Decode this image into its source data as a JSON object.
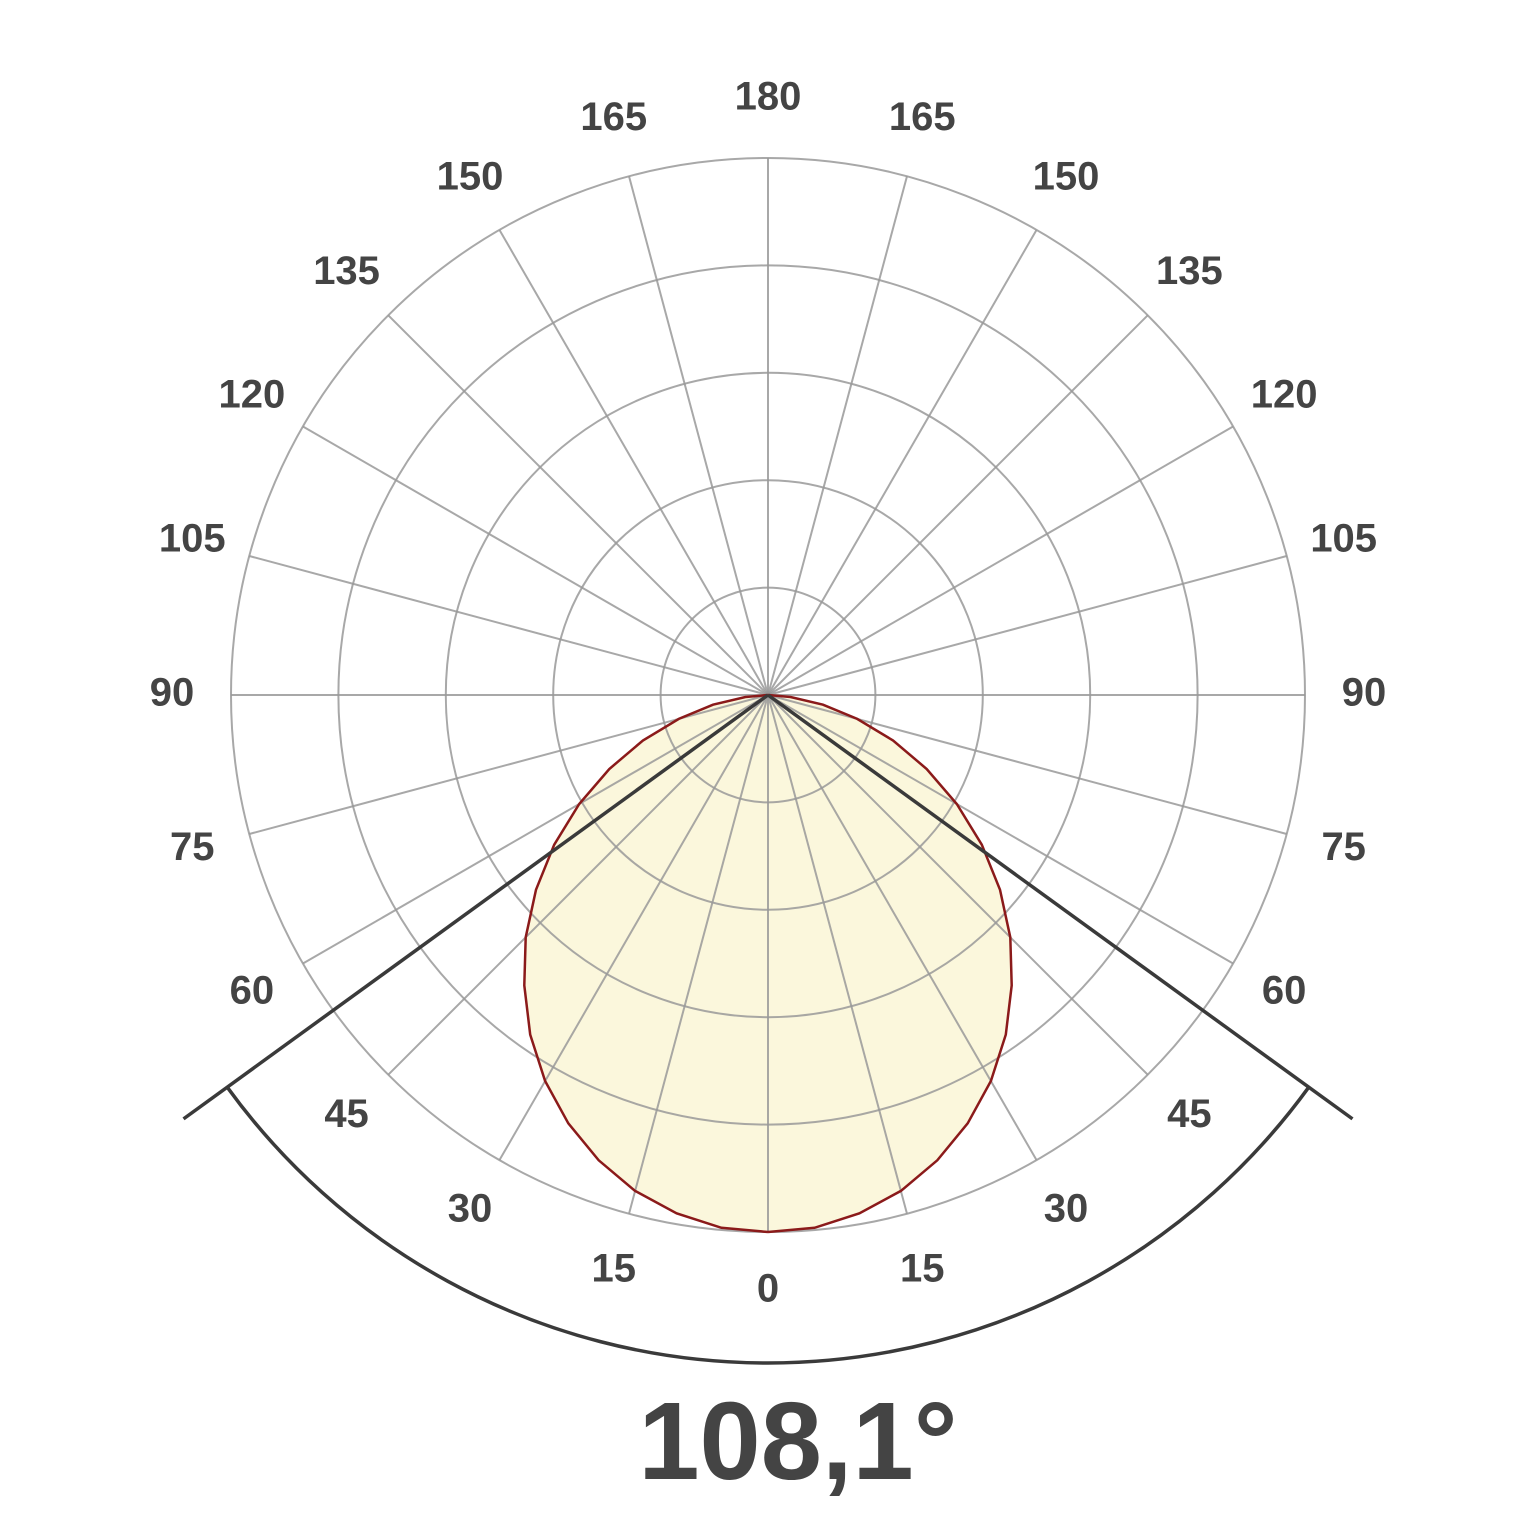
{
  "chart_data": {
    "type": "polar",
    "angle_ticks": [
      0,
      15,
      30,
      45,
      60,
      75,
      90,
      105,
      120,
      135,
      150,
      165,
      180
    ],
    "rlim": [
      0,
      5
    ],
    "rticks": [
      1,
      2,
      3,
      4,
      5
    ],
    "angles": [
      0,
      5,
      10,
      15,
      20,
      25,
      30,
      35,
      40,
      45,
      50,
      55,
      60,
      65,
      70,
      75,
      80,
      85,
      90
    ],
    "values": [
      5.0,
      4.98,
      4.9,
      4.78,
      4.61,
      4.4,
      4.15,
      3.86,
      3.53,
      3.19,
      2.82,
      2.43,
      2.03,
      1.63,
      1.24,
      0.86,
      0.52,
      0.21,
      0
    ],
    "color": "#8b1a1a",
    "fill": "#fbf7dc",
    "grid_color": "#999999",
    "beam_angle": {
      "value": 108.1,
      "label": "108,1°"
    }
  }
}
